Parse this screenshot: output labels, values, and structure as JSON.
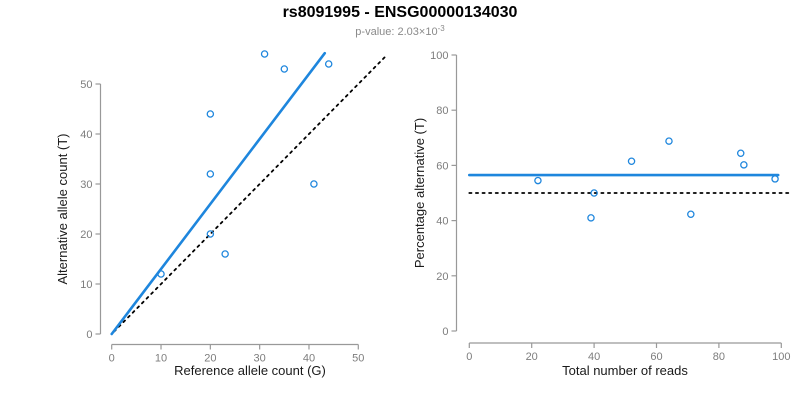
{
  "header": {
    "title": "rs8091995 - ENSG00000134030",
    "p_value_base": "p-value: 2.03×10",
    "p_value_exponent": "-3"
  },
  "colors": {
    "accent_blue": "#1E86DD",
    "line_black": "#000000",
    "axis_gray": "#999999",
    "tick_label_gray": "#7d7d7d",
    "axis_title_dark": "#1a1a1a"
  },
  "chart_data": [
    {
      "type": "scatter",
      "panel": "left",
      "xlabel": "Reference allele count (G)",
      "ylabel": "Alternative allele count (T)",
      "xlim": [
        0,
        50
      ],
      "ylim": [
        0,
        50
      ],
      "xticks": [
        0,
        10,
        20,
        30,
        40,
        50
      ],
      "yticks": [
        0,
        10,
        20,
        30,
        40,
        50
      ],
      "grid": false,
      "legend": "none",
      "points": [
        [
          10,
          12
        ],
        [
          20,
          20
        ],
        [
          20,
          32
        ],
        [
          20,
          44
        ],
        [
          23,
          16
        ],
        [
          31,
          56
        ],
        [
          35,
          53
        ],
        [
          41,
          30
        ],
        [
          44,
          54
        ]
      ],
      "lines": [
        {
          "name": "identity-line",
          "slope": 1,
          "intercept": 0,
          "x_range": [
            0.5,
            55.6
          ],
          "style": "dotted",
          "color": "#000000",
          "width": 1.8
        },
        {
          "name": "fit-line",
          "slope": 1.3,
          "intercept": 0,
          "x_range": [
            0,
            43.2
          ],
          "style": "solid",
          "color": "#1E86DD",
          "width": 2.6
        }
      ]
    },
    {
      "type": "scatter",
      "panel": "right",
      "xlabel": "Total number of reads",
      "ylabel": "Percentage alternative (T)",
      "xlim": [
        0,
        100
      ],
      "ylim": [
        0,
        100
      ],
      "xticks": [
        0,
        20,
        40,
        60,
        80,
        100
      ],
      "yticks": [
        0,
        20,
        40,
        60,
        80,
        100
      ],
      "grid": false,
      "legend": "none",
      "points": [
        [
          22,
          54.5
        ],
        [
          39,
          41.0
        ],
        [
          40,
          50.0
        ],
        [
          52,
          61.5
        ],
        [
          64,
          68.8
        ],
        [
          71,
          42.3
        ],
        [
          87,
          64.4
        ],
        [
          88,
          60.2
        ],
        [
          98,
          55.1
        ]
      ],
      "lines": [
        {
          "name": "mean-percentage-line",
          "slope": 0,
          "intercept": 56.5,
          "x_range": [
            0,
            99
          ],
          "style": "solid",
          "color": "#1E86DD",
          "width": 2.6
        },
        {
          "name": "fifty-percent-line",
          "slope": 0,
          "intercept": 50,
          "x_range": [
            0,
            103
          ],
          "style": "dotted",
          "color": "#000000",
          "width": 1.8
        }
      ]
    }
  ]
}
